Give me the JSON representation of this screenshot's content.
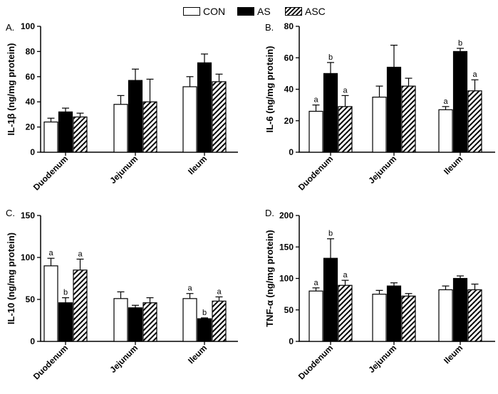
{
  "legend": [
    {
      "label": "CON",
      "style": "open"
    },
    {
      "label": "AS",
      "style": "solid"
    },
    {
      "label": "ASC",
      "style": "hatch"
    }
  ],
  "chart_data": [
    {
      "type": "bar",
      "panel_label": "A.",
      "ylabel": "IL-1β  (ng/mg protein)",
      "ylim": [
        0,
        100
      ],
      "yticks": [
        0,
        20,
        40,
        60,
        80,
        100
      ],
      "categories": [
        "Duodenum",
        "Jejunum",
        "Ileum"
      ],
      "series": [
        {
          "name": "CON",
          "values": [
            24,
            38,
            52
          ],
          "errors": [
            3,
            7,
            8
          ],
          "letters": [
            "",
            "",
            ""
          ]
        },
        {
          "name": "AS",
          "values": [
            32,
            57,
            71
          ],
          "errors": [
            3,
            9,
            7
          ],
          "letters": [
            "",
            "",
            ""
          ]
        },
        {
          "name": "ASC",
          "values": [
            28,
            40,
            56
          ],
          "errors": [
            3,
            18,
            6
          ],
          "letters": [
            "",
            "",
            ""
          ]
        }
      ]
    },
    {
      "type": "bar",
      "panel_label": "B.",
      "ylabel": "IL-6 (ng/mg protein)",
      "ylim": [
        0,
        80
      ],
      "yticks": [
        0,
        20,
        40,
        60,
        80
      ],
      "categories": [
        "Duodenum",
        "Jejunum",
        "Ileum"
      ],
      "series": [
        {
          "name": "CON",
          "values": [
            26,
            35,
            27
          ],
          "errors": [
            4,
            7,
            2
          ],
          "letters": [
            "a",
            "",
            "a"
          ]
        },
        {
          "name": "AS",
          "values": [
            50,
            54,
            64
          ],
          "errors": [
            7,
            14,
            2
          ],
          "letters": [
            "b",
            "",
            "b"
          ]
        },
        {
          "name": "ASC",
          "values": [
            29,
            42,
            39
          ],
          "errors": [
            7,
            5,
            7
          ],
          "letters": [
            "a",
            "",
            "a"
          ]
        }
      ]
    },
    {
      "type": "bar",
      "panel_label": "C.",
      "ylabel": "IL-10 (ng/mg protein)",
      "ylim": [
        0,
        150
      ],
      "yticks": [
        0,
        50,
        100,
        150
      ],
      "categories": [
        "Duodenum",
        "Jejunum",
        "Ileum"
      ],
      "series": [
        {
          "name": "CON",
          "values": [
            90,
            51,
            51
          ],
          "errors": [
            9,
            8,
            6
          ],
          "letters": [
            "a",
            "",
            "a"
          ]
        },
        {
          "name": "AS",
          "values": [
            46,
            40,
            27
          ],
          "errors": [
            6,
            3,
            1
          ],
          "letters": [
            "b",
            "",
            "b"
          ]
        },
        {
          "name": "ASC",
          "values": [
            85,
            46,
            48
          ],
          "errors": [
            13,
            6,
            5
          ],
          "letters": [
            "a",
            "",
            "a"
          ]
        }
      ]
    },
    {
      "type": "bar",
      "panel_label": "D.",
      "ylabel": "TNF-α (ng/mg protein)",
      "ylim": [
        0,
        200
      ],
      "yticks": [
        0,
        50,
        100,
        150,
        200
      ],
      "categories": [
        "Duodenum",
        "Jejunum",
        "Ileum"
      ],
      "series": [
        {
          "name": "CON",
          "values": [
            80,
            75,
            82
          ],
          "errors": [
            5,
            6,
            6
          ],
          "letters": [
            "a",
            "",
            ""
          ]
        },
        {
          "name": "AS",
          "values": [
            132,
            88,
            100
          ],
          "errors": [
            31,
            5,
            4
          ],
          "letters": [
            "b",
            "",
            ""
          ]
        },
        {
          "name": "ASC",
          "values": [
            89,
            72,
            82
          ],
          "errors": [
            8,
            4,
            9
          ],
          "letters": [
            "a",
            "",
            ""
          ]
        }
      ]
    }
  ],
  "colors": {
    "axis": "#000000",
    "solid": "#000000",
    "open": "#ffffff"
  }
}
